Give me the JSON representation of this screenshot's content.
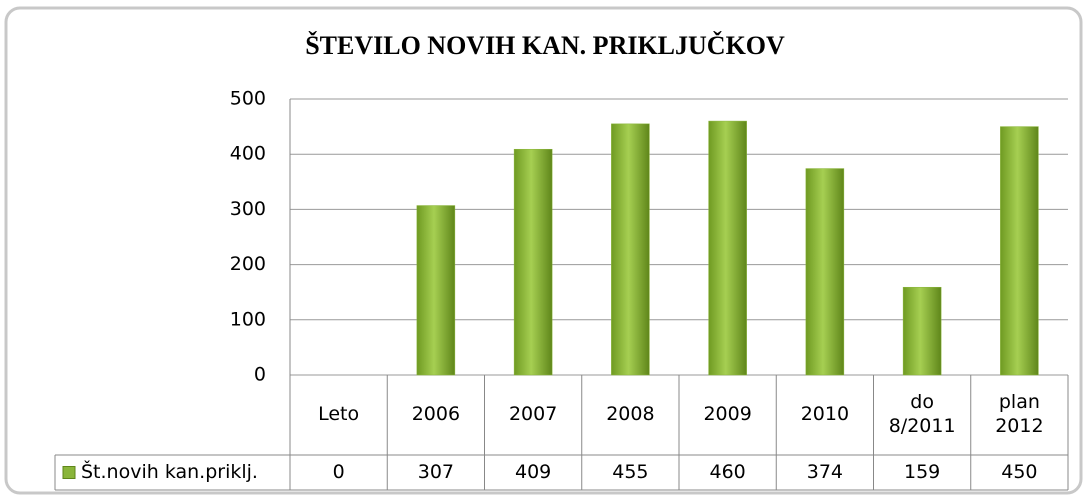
{
  "chart_data": {
    "type": "bar",
    "title": "ŠTEVILO NOVIH KAN. PRIKLJUČKOV",
    "categories": [
      "Leto",
      "2006",
      "2007",
      "2008",
      "2009",
      "2010",
      "do 8/2011",
      "plan 2012"
    ],
    "series": [
      {
        "name": "Št.novih kan.priklj.",
        "color": "#8ab53a",
        "values": [
          0,
          307,
          409,
          455,
          460,
          374,
          159,
          450
        ]
      }
    ],
    "ylim": [
      0,
      500
    ],
    "yticks": [
      0,
      100,
      200,
      300,
      400,
      500
    ],
    "grid": true
  }
}
